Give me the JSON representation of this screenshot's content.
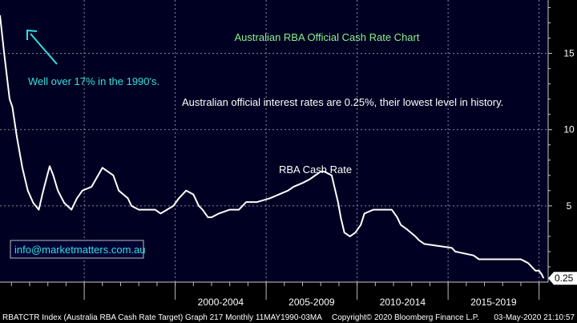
{
  "chart_data": {
    "type": "line",
    "title": "Australian RBA Official Cash Rate Chart",
    "ylim": [
      0,
      18.5
    ],
    "xlim": [
      1990.37,
      2020.5
    ],
    "y_ticks": [
      5,
      10,
      15
    ],
    "x_tick_labels": [
      "2000-2004",
      "2005-2009",
      "2010-2014",
      "2015-2019"
    ],
    "grid": true,
    "series": [
      {
        "name": "RBA Cash Rate",
        "x": [
          1990.37,
          1990.6,
          1990.9,
          1991.05,
          1991.3,
          1991.6,
          1991.9,
          1992.2,
          1992.5,
          1992.75,
          1993.1,
          1993.3,
          1993.55,
          1993.9,
          1994.3,
          1994.6,
          1994.9,
          1995.4,
          1996.0,
          1996.6,
          1996.9,
          1997.4,
          1997.6,
          1998.0,
          1998.9,
          1999.2,
          1999.9,
          2000.2,
          2000.6,
          2001.0,
          2001.3,
          2001.5,
          2001.8,
          2002.0,
          2002.4,
          2003.0,
          2003.5,
          2003.9,
          2004.5,
          2005.2,
          2006.2,
          2006.5,
          2007.0,
          2007.4,
          2007.7,
          2008.0,
          2008.2,
          2008.6,
          2008.8,
          2008.95,
          2009.1,
          2009.3,
          2009.6,
          2009.9,
          2010.2,
          2010.4,
          2010.9,
          2011.2,
          2011.9,
          2012.2,
          2012.4,
          2012.7,
          2013.2,
          2013.4,
          2013.7,
          2015.2,
          2015.4,
          2016.4,
          2016.7,
          2019.0,
          2019.4,
          2019.6,
          2019.8,
          2020.0,
          2020.15,
          2020.25
        ],
        "y": [
          17.5,
          15.0,
          12.0,
          11.5,
          9.5,
          7.5,
          6.0,
          5.2,
          4.75,
          6.0,
          7.6,
          7.0,
          6.0,
          5.2,
          4.75,
          5.5,
          6.0,
          6.25,
          7.5,
          7.0,
          6.0,
          5.5,
          5.0,
          4.75,
          4.75,
          4.5,
          5.0,
          5.5,
          6.0,
          5.75,
          5.0,
          4.75,
          4.25,
          4.25,
          4.5,
          4.75,
          4.75,
          5.25,
          5.25,
          5.5,
          6.0,
          6.25,
          6.5,
          6.75,
          7.0,
          7.25,
          7.25,
          7.0,
          6.0,
          5.25,
          4.25,
          3.25,
          3.0,
          3.25,
          3.75,
          4.5,
          4.75,
          4.75,
          4.75,
          4.25,
          3.75,
          3.5,
          3.0,
          2.75,
          2.5,
          2.25,
          2.0,
          1.75,
          1.5,
          1.5,
          1.25,
          1.0,
          0.75,
          0.75,
          0.5,
          0.25
        ]
      }
    ],
    "last_value_label": "0.25",
    "annotations": {
      "title": "Australian RBA Official Cash Rate Chart",
      "history_note": "Well over 17% in the 1990's.",
      "rate_note": "Australian official interest rates are 0.25%, their lowest level in history.",
      "series_label": "RBA Cash Rate",
      "website": "info@marketmatters.com.au"
    }
  },
  "footer": {
    "left": "RBATCTR Index (Australia RBA Cash Rate Target) Graph 217  Monthly 11MAY1990-03MA",
    "middle": "Copyright© 2020 Bloomberg Finance L.P.",
    "right": "03-May-2020 21:10:57"
  },
  "colors": {
    "background": "#000000",
    "plot_background": "#000022",
    "line": "#ffffff",
    "title": "#8cf08c",
    "cyan": "#33e0e0",
    "grid": "#8a8aa0",
    "footer_text": "#ffffff",
    "website_border": "#bbbbbb"
  }
}
